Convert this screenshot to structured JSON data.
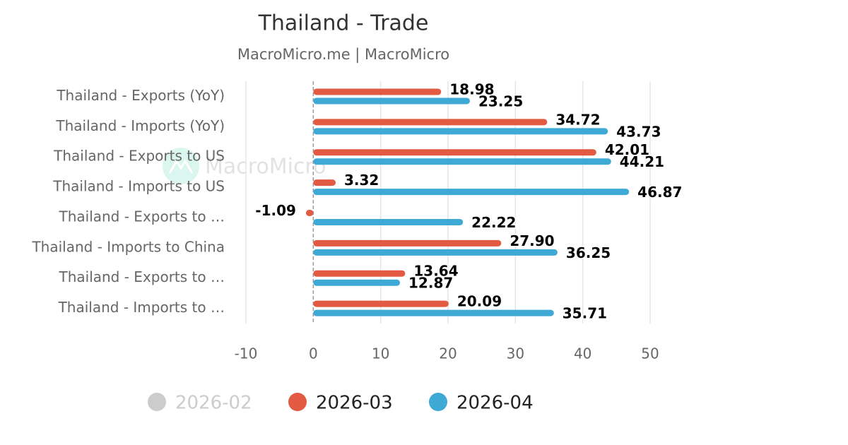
{
  "chart_data": {
    "type": "hbar",
    "title": "Thailand - Trade",
    "subtitle": "MacroMicro.me | MacroMicro",
    "watermark": "MacroMicro",
    "categories": [
      "Thailand - Exports (YoY)",
      "Thailand - Imports (YoY)",
      "Thailand - Exports to US",
      "Thailand - Imports to US",
      "Thailand - Exports to …",
      "Thailand - Imports to China",
      "Thailand - Exports to …",
      "Thailand - Imports to …"
    ],
    "series": [
      {
        "name": "2026-02",
        "color": "#cccccc",
        "visible": false,
        "values": [
          null,
          null,
          null,
          null,
          null,
          null,
          null,
          null
        ]
      },
      {
        "name": "2026-03",
        "color": "#e35a43",
        "visible": true,
        "values": [
          18.98,
          34.72,
          42.01,
          3.32,
          -1.09,
          27.9,
          13.64,
          20.09
        ],
        "value_labels": [
          "18.98",
          "34.72",
          "42.01",
          "3.32",
          "-1.09",
          "27.90",
          "13.64",
          "20.09"
        ]
      },
      {
        "name": "2026-04",
        "color": "#3da9d4",
        "visible": true,
        "values": [
          23.25,
          43.73,
          44.21,
          46.87,
          22.22,
          36.25,
          12.87,
          35.71
        ],
        "value_labels": [
          "23.25",
          "43.73",
          "44.21",
          "46.87",
          "22.22",
          "36.25",
          "12.87",
          "35.71"
        ]
      }
    ],
    "xlim": [
      -10,
      50
    ],
    "xticks": [
      -10,
      0,
      10,
      20,
      30,
      40,
      50
    ],
    "grid": true,
    "legend": "bottom"
  }
}
